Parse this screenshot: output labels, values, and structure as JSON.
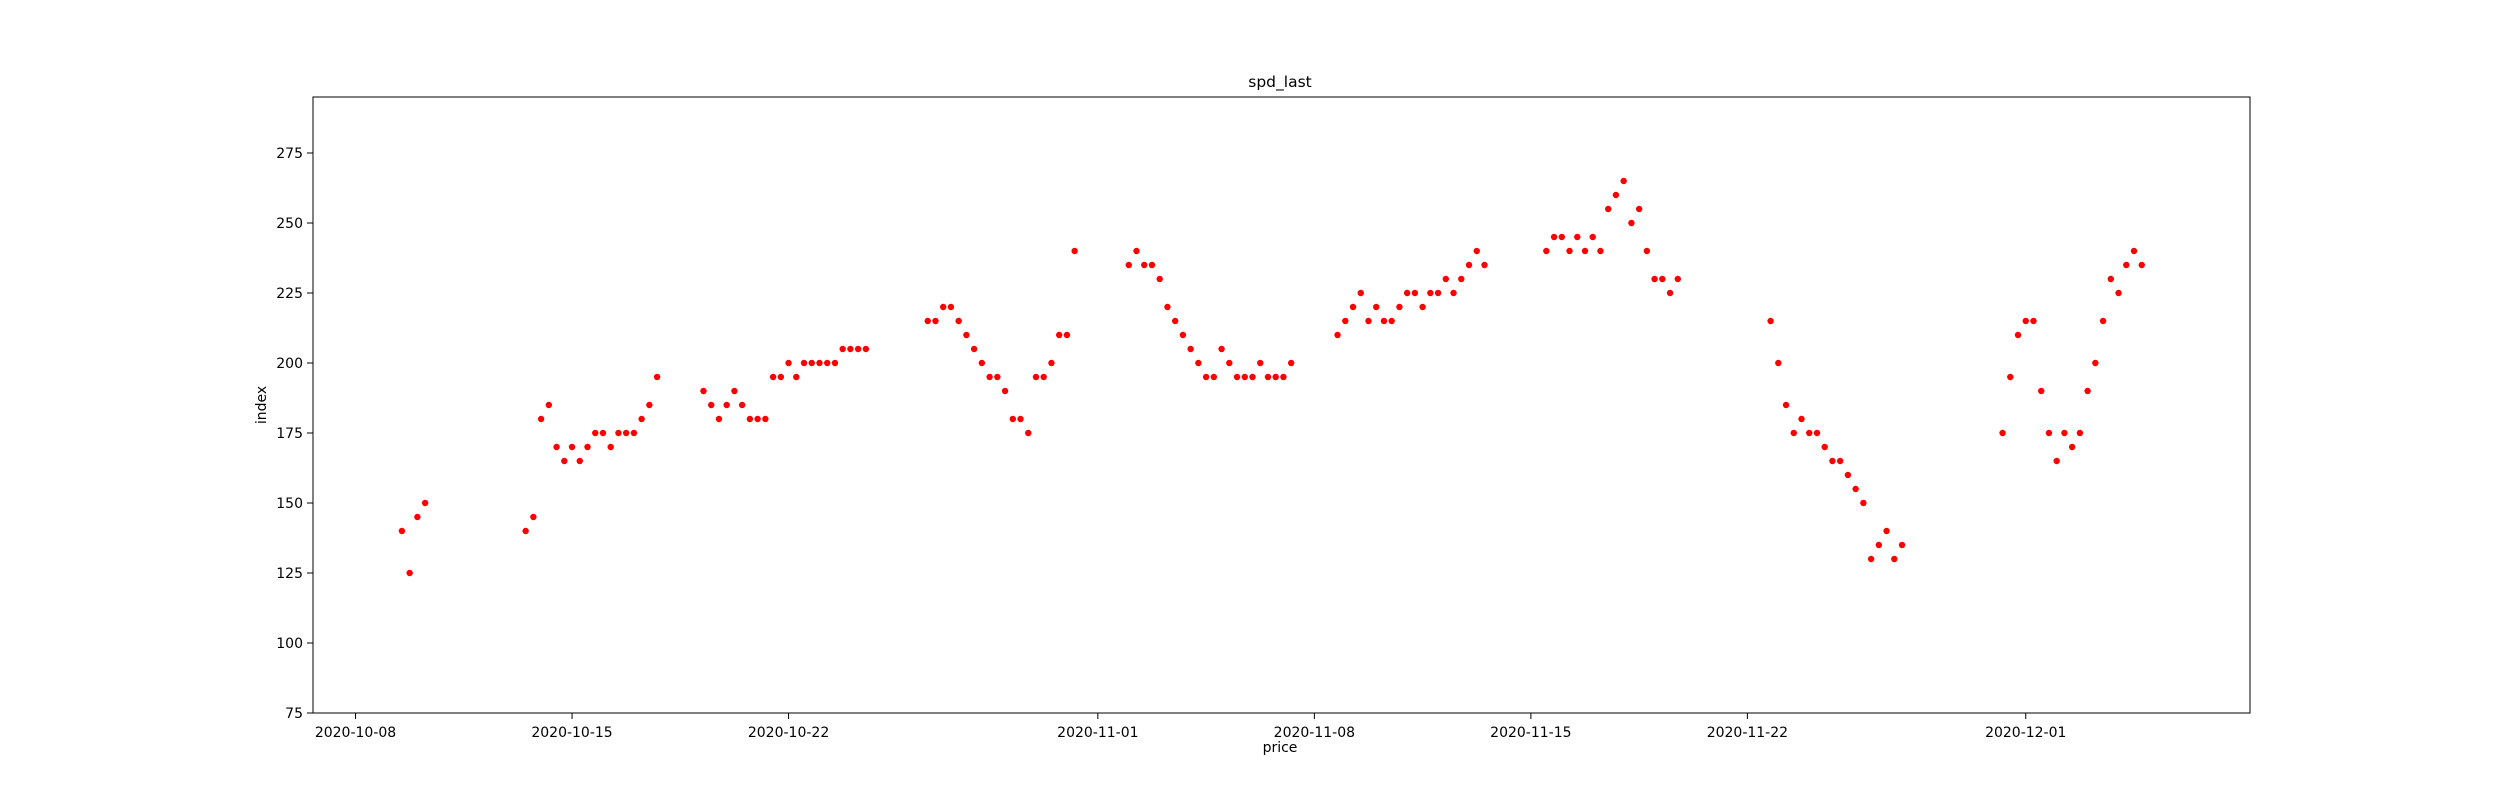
{
  "chart_data": {
    "type": "scatter",
    "title": "spd_last",
    "xlabel": "price",
    "ylabel": "index",
    "x_axis": {
      "type": "date",
      "ticks": [
        "2020-10-08",
        "2020-10-15",
        "2020-10-22",
        "2020-11-01",
        "2020-11-08",
        "2020-11-15",
        "2020-11-22",
        "2020-12-01"
      ],
      "range": [
        "2020-10-06T15:00",
        "2020-12-08T06:00"
      ]
    },
    "y_axis": {
      "ticks": [
        75,
        100,
        125,
        150,
        175,
        200,
        225,
        250,
        275
      ],
      "range": [
        75,
        295
      ]
    },
    "grid": false,
    "legend": "none",
    "marker_color": "#ff0000",
    "series": [
      {
        "values": [
          [
            "2020-10-09T12:00",
            140
          ],
          [
            "2020-10-09T18:00",
            125
          ],
          [
            "2020-10-10T00:00",
            145
          ],
          [
            "2020-10-10T06:00",
            150
          ],
          [
            "2020-10-13T12:00",
            140
          ],
          [
            "2020-10-13T18:00",
            145
          ],
          [
            "2020-10-14T00:00",
            180
          ],
          [
            "2020-10-14T06:00",
            185
          ],
          [
            "2020-10-14T12:00",
            170
          ],
          [
            "2020-10-14T18:00",
            165
          ],
          [
            "2020-10-15T00:00",
            170
          ],
          [
            "2020-10-15T06:00",
            165
          ],
          [
            "2020-10-15T12:00",
            170
          ],
          [
            "2020-10-15T18:00",
            175
          ],
          [
            "2020-10-16T00:00",
            175
          ],
          [
            "2020-10-16T06:00",
            170
          ],
          [
            "2020-10-16T12:00",
            175
          ],
          [
            "2020-10-16T18:00",
            175
          ],
          [
            "2020-10-17T00:00",
            175
          ],
          [
            "2020-10-17T06:00",
            180
          ],
          [
            "2020-10-17T12:00",
            185
          ],
          [
            "2020-10-17T18:00",
            195
          ],
          [
            "2020-10-19T06:00",
            190
          ],
          [
            "2020-10-19T12:00",
            185
          ],
          [
            "2020-10-19T18:00",
            180
          ],
          [
            "2020-10-20T00:00",
            185
          ],
          [
            "2020-10-20T06:00",
            190
          ],
          [
            "2020-10-20T12:00",
            185
          ],
          [
            "2020-10-20T18:00",
            180
          ],
          [
            "2020-10-21T00:00",
            180
          ],
          [
            "2020-10-21T06:00",
            180
          ],
          [
            "2020-10-21T12:00",
            195
          ],
          [
            "2020-10-21T18:00",
            195
          ],
          [
            "2020-10-22T00:00",
            200
          ],
          [
            "2020-10-22T06:00",
            195
          ],
          [
            "2020-10-22T12:00",
            200
          ],
          [
            "2020-10-22T18:00",
            200
          ],
          [
            "2020-10-23T00:00",
            200
          ],
          [
            "2020-10-23T06:00",
            200
          ],
          [
            "2020-10-23T12:00",
            200
          ],
          [
            "2020-10-23T18:00",
            205
          ],
          [
            "2020-10-24T00:00",
            205
          ],
          [
            "2020-10-24T06:00",
            205
          ],
          [
            "2020-10-24T12:00",
            205
          ],
          [
            "2020-10-26T12:00",
            215
          ],
          [
            "2020-10-26T18:00",
            215
          ],
          [
            "2020-10-27T00:00",
            220
          ],
          [
            "2020-10-27T06:00",
            220
          ],
          [
            "2020-10-27T12:00",
            215
          ],
          [
            "2020-10-27T18:00",
            210
          ],
          [
            "2020-10-28T00:00",
            205
          ],
          [
            "2020-10-28T06:00",
            200
          ],
          [
            "2020-10-28T12:00",
            195
          ],
          [
            "2020-10-28T18:00",
            195
          ],
          [
            "2020-10-29T00:00",
            190
          ],
          [
            "2020-10-29T06:00",
            180
          ],
          [
            "2020-10-29T12:00",
            180
          ],
          [
            "2020-10-29T18:00",
            175
          ],
          [
            "2020-10-30T00:00",
            195
          ],
          [
            "2020-10-30T06:00",
            195
          ],
          [
            "2020-10-30T12:00",
            200
          ],
          [
            "2020-10-30T18:00",
            210
          ],
          [
            "2020-10-31T00:00",
            210
          ],
          [
            "2020-10-31T06:00",
            240
          ],
          [
            "2020-11-02T00:00",
            235
          ],
          [
            "2020-11-02T06:00",
            240
          ],
          [
            "2020-11-02T12:00",
            235
          ],
          [
            "2020-11-02T18:00",
            235
          ],
          [
            "2020-11-03T00:00",
            230
          ],
          [
            "2020-11-03T06:00",
            220
          ],
          [
            "2020-11-03T12:00",
            215
          ],
          [
            "2020-11-03T18:00",
            210
          ],
          [
            "2020-11-04T00:00",
            205
          ],
          [
            "2020-11-04T06:00",
            200
          ],
          [
            "2020-11-04T12:00",
            195
          ],
          [
            "2020-11-04T18:00",
            195
          ],
          [
            "2020-11-05T00:00",
            205
          ],
          [
            "2020-11-05T06:00",
            200
          ],
          [
            "2020-11-05T12:00",
            195
          ],
          [
            "2020-11-05T18:00",
            195
          ],
          [
            "2020-11-06T00:00",
            195
          ],
          [
            "2020-11-06T06:00",
            200
          ],
          [
            "2020-11-06T12:00",
            195
          ],
          [
            "2020-11-06T18:00",
            195
          ],
          [
            "2020-11-07T00:00",
            195
          ],
          [
            "2020-11-07T06:00",
            200
          ],
          [
            "2020-11-08T18:00",
            210
          ],
          [
            "2020-11-09T00:00",
            215
          ],
          [
            "2020-11-09T06:00",
            220
          ],
          [
            "2020-11-09T12:00",
            225
          ],
          [
            "2020-11-09T18:00",
            215
          ],
          [
            "2020-11-10T00:00",
            220
          ],
          [
            "2020-11-10T06:00",
            215
          ],
          [
            "2020-11-10T12:00",
            215
          ],
          [
            "2020-11-10T18:00",
            220
          ],
          [
            "2020-11-11T00:00",
            225
          ],
          [
            "2020-11-11T06:00",
            225
          ],
          [
            "2020-11-11T12:00",
            220
          ],
          [
            "2020-11-11T18:00",
            225
          ],
          [
            "2020-11-12T00:00",
            225
          ],
          [
            "2020-11-12T06:00",
            230
          ],
          [
            "2020-11-12T12:00",
            225
          ],
          [
            "2020-11-12T18:00",
            230
          ],
          [
            "2020-11-13T00:00",
            235
          ],
          [
            "2020-11-13T06:00",
            240
          ],
          [
            "2020-11-13T12:00",
            235
          ],
          [
            "2020-11-15T12:00",
            240
          ],
          [
            "2020-11-15T18:00",
            245
          ],
          [
            "2020-11-16T00:00",
            245
          ],
          [
            "2020-11-16T06:00",
            240
          ],
          [
            "2020-11-16T12:00",
            245
          ],
          [
            "2020-11-16T18:00",
            240
          ],
          [
            "2020-11-17T00:00",
            245
          ],
          [
            "2020-11-17T06:00",
            240
          ],
          [
            "2020-11-17T12:00",
            255
          ],
          [
            "2020-11-17T18:00",
            260
          ],
          [
            "2020-11-18T00:00",
            265
          ],
          [
            "2020-11-18T06:00",
            250
          ],
          [
            "2020-11-18T12:00",
            255
          ],
          [
            "2020-11-18T18:00",
            240
          ],
          [
            "2020-11-19T00:00",
            230
          ],
          [
            "2020-11-19T06:00",
            230
          ],
          [
            "2020-11-19T12:00",
            225
          ],
          [
            "2020-11-19T18:00",
            230
          ],
          [
            "2020-11-22T18:00",
            215
          ],
          [
            "2020-11-23T00:00",
            200
          ],
          [
            "2020-11-23T06:00",
            185
          ],
          [
            "2020-11-23T12:00",
            175
          ],
          [
            "2020-11-23T18:00",
            180
          ],
          [
            "2020-11-24T00:00",
            175
          ],
          [
            "2020-11-24T06:00",
            175
          ],
          [
            "2020-11-24T12:00",
            170
          ],
          [
            "2020-11-24T18:00",
            165
          ],
          [
            "2020-11-25T00:00",
            165
          ],
          [
            "2020-11-25T06:00",
            160
          ],
          [
            "2020-11-25T12:00",
            155
          ],
          [
            "2020-11-25T18:00",
            150
          ],
          [
            "2020-11-26T00:00",
            130
          ],
          [
            "2020-11-26T06:00",
            135
          ],
          [
            "2020-11-26T12:00",
            140
          ],
          [
            "2020-11-26T18:00",
            130
          ],
          [
            "2020-11-27T00:00",
            135
          ],
          [
            "2020-11-30T06:00",
            175
          ],
          [
            "2020-11-30T12:00",
            195
          ],
          [
            "2020-11-30T18:00",
            210
          ],
          [
            "2020-12-01T00:00",
            215
          ],
          [
            "2020-12-01T06:00",
            215
          ],
          [
            "2020-12-01T12:00",
            190
          ],
          [
            "2020-12-01T18:00",
            175
          ],
          [
            "2020-12-02T00:00",
            165
          ],
          [
            "2020-12-02T06:00",
            175
          ],
          [
            "2020-12-02T12:00",
            170
          ],
          [
            "2020-12-02T18:00",
            175
          ],
          [
            "2020-12-03T00:00",
            190
          ],
          [
            "2020-12-03T06:00",
            200
          ],
          [
            "2020-12-03T12:00",
            215
          ],
          [
            "2020-12-03T18:00",
            230
          ],
          [
            "2020-12-04T00:00",
            225
          ],
          [
            "2020-12-04T06:00",
            235
          ],
          [
            "2020-12-04T12:00",
            240
          ],
          [
            "2020-12-04T18:00",
            235
          ]
        ]
      }
    ]
  }
}
